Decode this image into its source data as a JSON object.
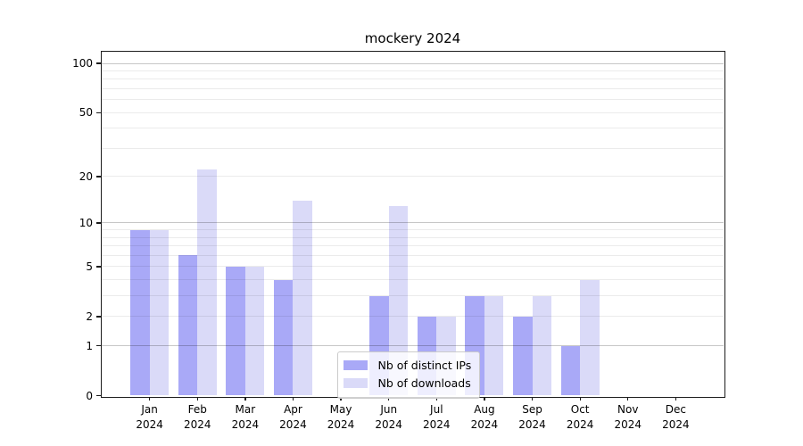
{
  "chart_data": {
    "type": "bar",
    "title": "mockery 2024",
    "xlabel": "",
    "ylabel": "",
    "categories": [
      "Jan",
      "Feb",
      "Mar",
      "Apr",
      "May",
      "Jun",
      "Jul",
      "Aug",
      "Sep",
      "Oct",
      "Nov",
      "Dec"
    ],
    "year": "2024",
    "series": [
      {
        "name": "Nb of distinct IPs",
        "color": "#a9a9f7",
        "values": [
          9,
          6,
          5,
          4,
          0,
          3,
          2,
          3,
          2,
          1,
          0,
          0
        ]
      },
      {
        "name": "Nb of downloads",
        "color": "#dadaf8",
        "values": [
          9,
          22,
          5,
          14,
          0,
          13,
          2,
          3,
          3,
          4,
          0,
          0
        ]
      }
    ],
    "yscale": "log1p",
    "ylim": [
      0,
      118
    ],
    "y_ticks": [
      0,
      1,
      2,
      5,
      10,
      20,
      50,
      100
    ],
    "y_gridlines_major": [
      1,
      10,
      100
    ],
    "y_gridlines_minor": [
      2,
      3,
      4,
      5,
      6,
      7,
      8,
      9,
      20,
      30,
      40,
      50,
      60,
      70,
      80,
      90
    ],
    "grid_major_color": "rgba(0,0,0,0.22)",
    "grid_minor_color": "rgba(0,0,0,0.08)",
    "legend_position": "lower center",
    "bar_group_width": 0.8
  }
}
